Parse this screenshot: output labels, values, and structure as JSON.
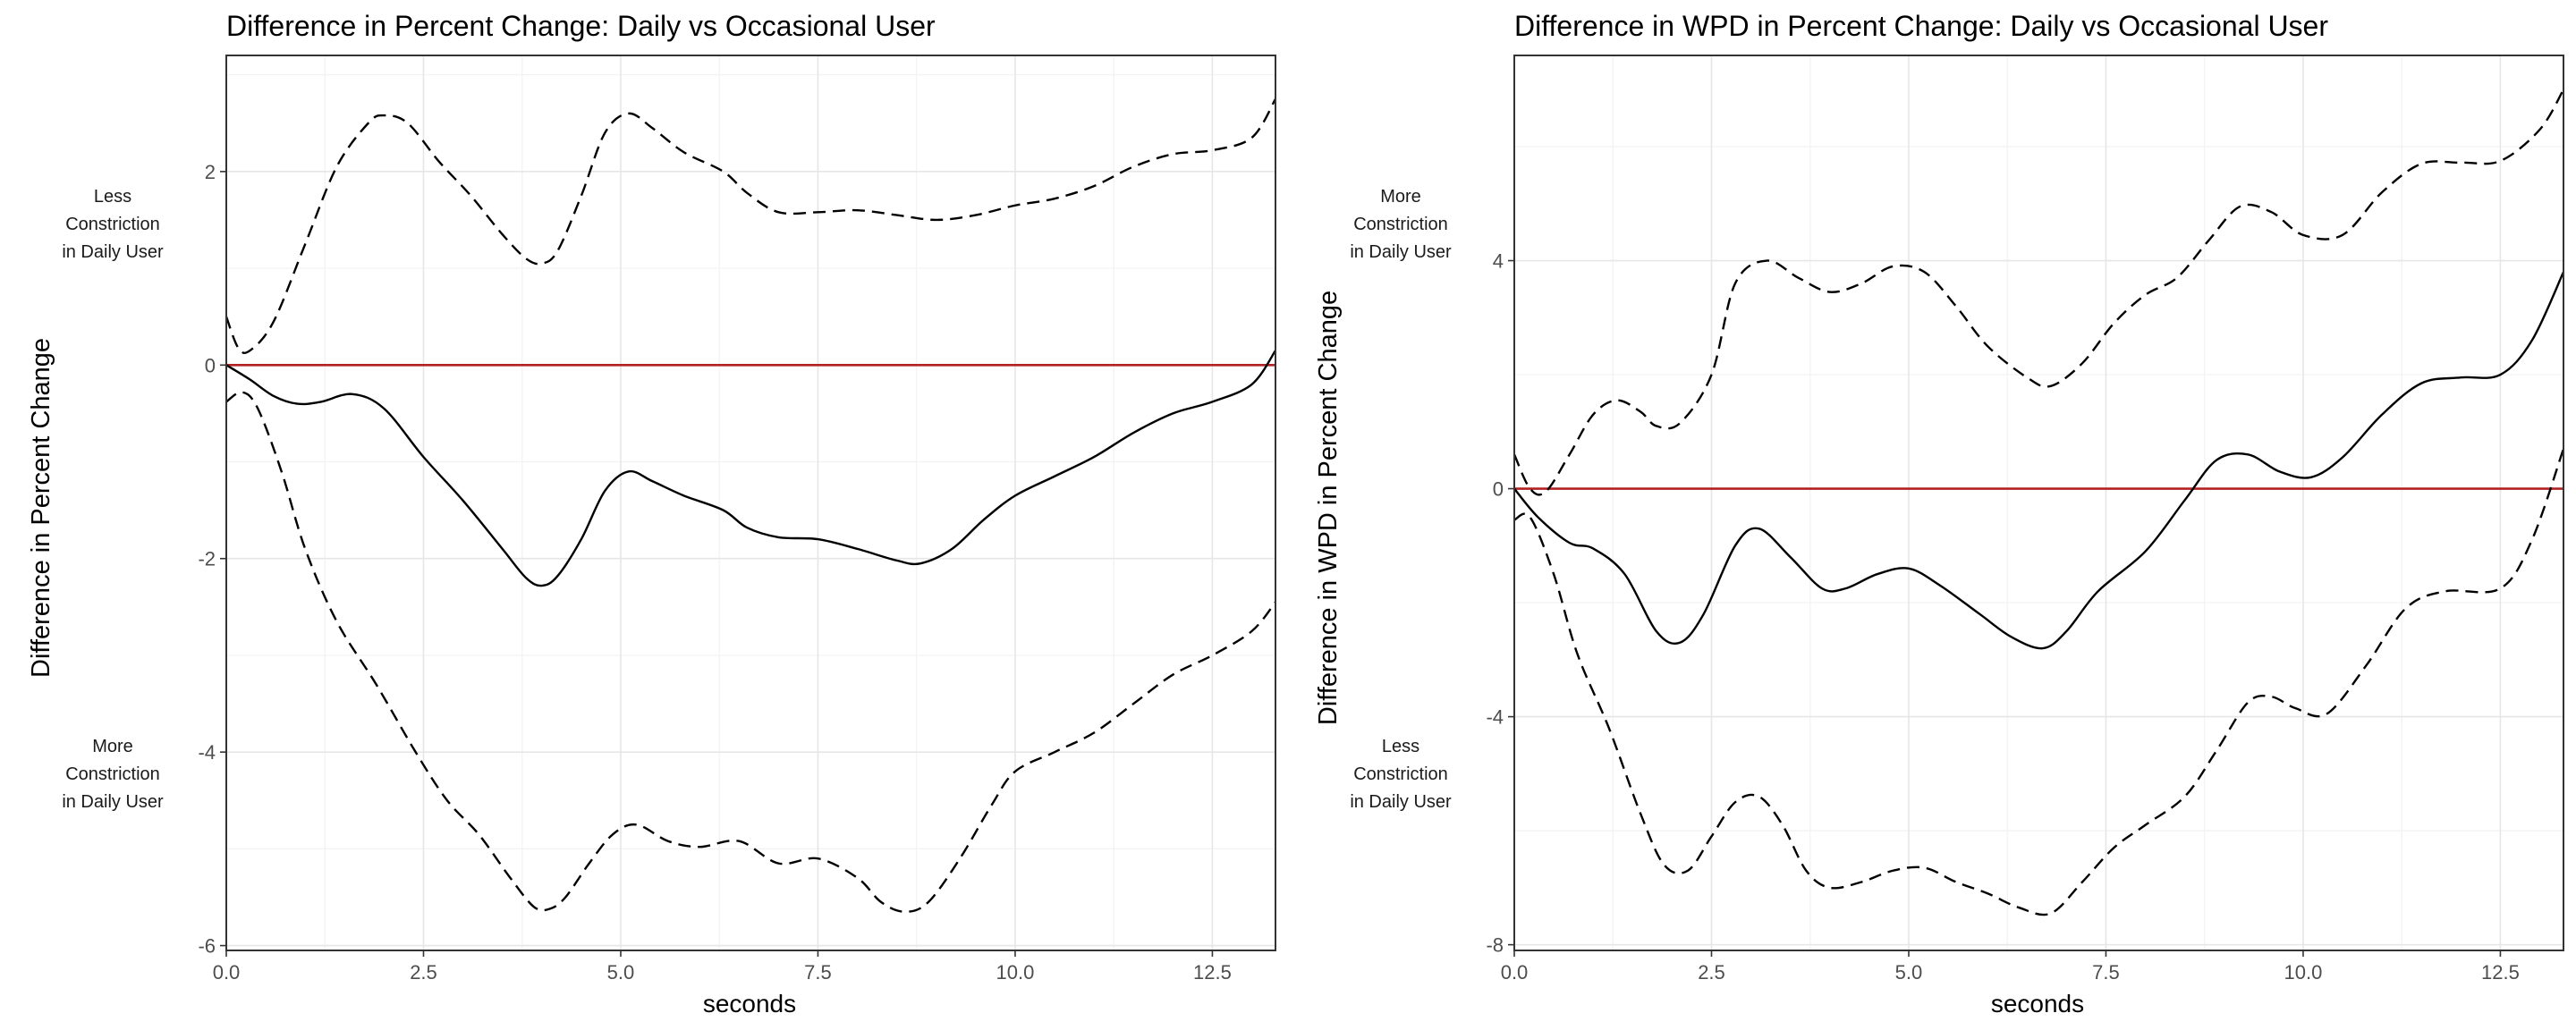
{
  "chart_data": [
    {
      "type": "line",
      "title": "Difference in Percent Change: Daily vs Occasional User",
      "xlabel": "seconds",
      "ylabel": "Difference in Percent Change",
      "xlim": [
        0,
        13.3
      ],
      "ylim": [
        -6.05,
        3.2
      ],
      "x_ticks": [
        0,
        2.5,
        5,
        7.5,
        10,
        12.5
      ],
      "x_tick_labels": [
        "0.0",
        "2.5",
        "5.0",
        "7.5",
        "10.0",
        "12.5"
      ],
      "y_ticks": [
        -6,
        -4,
        -2,
        0,
        2
      ],
      "y_tick_labels": [
        "-6",
        "-4",
        "-2",
        "0",
        "2"
      ],
      "grid": true,
      "reference_line": {
        "y": 0,
        "color": "#b22222"
      },
      "annotations": [
        {
          "lines": [
            "Less",
            "Constriction",
            "in Daily User"
          ],
          "y": 1.45
        },
        {
          "lines": [
            "More",
            "Constriction",
            "in Daily User"
          ],
          "y": -4.2
        }
      ],
      "series": [
        {
          "style": "solid",
          "color": "#000000",
          "x": [
            0,
            0.3,
            0.6,
            0.9,
            1.2,
            1.6,
            2.0,
            2.5,
            3.0,
            3.5,
            3.8,
            4.0,
            4.2,
            4.5,
            4.8,
            5.1,
            5.4,
            5.8,
            6.3,
            6.6,
            7.0,
            7.5,
            8.0,
            8.5,
            8.8,
            9.2,
            9.6,
            10.0,
            10.5,
            11.0,
            11.5,
            12.0,
            12.5,
            13.0,
            13.3
          ],
          "y": [
            0.0,
            -0.15,
            -0.32,
            -0.4,
            -0.38,
            -0.3,
            -0.45,
            -0.95,
            -1.4,
            -1.9,
            -2.2,
            -2.28,
            -2.18,
            -1.8,
            -1.3,
            -1.1,
            -1.2,
            -1.35,
            -1.5,
            -1.68,
            -1.78,
            -1.8,
            -1.9,
            -2.02,
            -2.05,
            -1.9,
            -1.6,
            -1.35,
            -1.15,
            -0.95,
            -0.7,
            -0.5,
            -0.38,
            -0.2,
            0.15
          ]
        },
        {
          "style": "dashed",
          "color": "#000000",
          "x": [
            0,
            0.15,
            0.3,
            0.6,
            1.0,
            1.4,
            1.8,
            2.0,
            2.3,
            2.7,
            3.1,
            3.5,
            3.8,
            4.0,
            4.2,
            4.5,
            4.8,
            5.1,
            5.4,
            5.8,
            6.3,
            6.6,
            7.0,
            7.5,
            8.0,
            8.5,
            9.0,
            9.5,
            10.0,
            10.5,
            11.0,
            11.5,
            12.0,
            12.5,
            13.0,
            13.3
          ],
          "y": [
            0.5,
            0.18,
            0.15,
            0.45,
            1.25,
            2.05,
            2.5,
            2.58,
            2.5,
            2.1,
            1.75,
            1.35,
            1.1,
            1.05,
            1.18,
            1.75,
            2.4,
            2.6,
            2.45,
            2.2,
            2.0,
            1.78,
            1.58,
            1.58,
            1.6,
            1.55,
            1.5,
            1.55,
            1.65,
            1.72,
            1.85,
            2.05,
            2.18,
            2.22,
            2.35,
            2.75
          ]
        },
        {
          "style": "dashed",
          "color": "#000000",
          "x": [
            0,
            0.2,
            0.4,
            0.7,
            1.0,
            1.4,
            1.9,
            2.4,
            2.8,
            3.2,
            3.6,
            3.9,
            4.1,
            4.3,
            4.6,
            4.9,
            5.2,
            5.6,
            6.0,
            6.5,
            7.0,
            7.5,
            8.0,
            8.3,
            8.6,
            8.9,
            9.3,
            9.7,
            10.0,
            10.5,
            11.0,
            11.5,
            12.0,
            12.5,
            13.0,
            13.3
          ],
          "y": [
            -0.38,
            -0.28,
            -0.45,
            -1.1,
            -1.9,
            -2.65,
            -3.3,
            -4.0,
            -4.5,
            -4.85,
            -5.3,
            -5.6,
            -5.62,
            -5.5,
            -5.15,
            -4.85,
            -4.75,
            -4.92,
            -4.98,
            -4.92,
            -5.15,
            -5.1,
            -5.3,
            -5.55,
            -5.65,
            -5.55,
            -5.1,
            -4.55,
            -4.2,
            -4.0,
            -3.8,
            -3.5,
            -3.2,
            -3.0,
            -2.75,
            -2.45
          ]
        }
      ]
    },
    {
      "type": "line",
      "title": "Difference in WPD in Percent Change: Daily vs Occasional User",
      "xlabel": "seconds",
      "ylabel": "Difference in WPD in Percent Change",
      "xlim": [
        0,
        13.3
      ],
      "ylim": [
        -8.1,
        7.6
      ],
      "x_ticks": [
        0,
        2.5,
        5,
        7.5,
        10,
        12.5
      ],
      "x_tick_labels": [
        "0.0",
        "2.5",
        "5.0",
        "7.5",
        "10.0",
        "12.5"
      ],
      "y_ticks": [
        -8,
        -4,
        0,
        4
      ],
      "y_tick_labels": [
        "-8",
        "-4",
        "0",
        "4"
      ],
      "grid": true,
      "reference_line": {
        "y": 0,
        "color": "#b22222"
      },
      "annotations": [
        {
          "lines": [
            "More",
            "Constriction",
            "in Daily User"
          ],
          "y": 4.6
        },
        {
          "lines": [
            "Less",
            "Constriction",
            "in Daily User"
          ],
          "y": -5.0
        }
      ],
      "series": [
        {
          "style": "solid",
          "color": "#000000",
          "x": [
            0,
            0.3,
            0.7,
            1.0,
            1.4,
            1.8,
            2.1,
            2.4,
            2.8,
            3.1,
            3.5,
            3.9,
            4.2,
            4.6,
            5.0,
            5.4,
            5.9,
            6.3,
            6.7,
            7.0,
            7.4,
            8.0,
            8.5,
            8.9,
            9.3,
            9.7,
            10.1,
            10.5,
            11.0,
            11.5,
            12.0,
            12.5,
            12.9,
            13.3
          ],
          "y": [
            0.0,
            -0.5,
            -0.95,
            -1.05,
            -1.5,
            -2.5,
            -2.7,
            -2.2,
            -1.0,
            -0.7,
            -1.2,
            -1.75,
            -1.75,
            -1.5,
            -1.4,
            -1.7,
            -2.2,
            -2.6,
            -2.8,
            -2.5,
            -1.8,
            -1.1,
            -0.2,
            0.5,
            0.6,
            0.3,
            0.2,
            0.55,
            1.3,
            1.85,
            1.95,
            2.0,
            2.6,
            3.8
          ]
        },
        {
          "style": "dashed",
          "color": "#000000",
          "x": [
            0,
            0.2,
            0.4,
            0.7,
            1.0,
            1.3,
            1.6,
            1.8,
            2.1,
            2.5,
            2.8,
            3.2,
            3.6,
            4.0,
            4.4,
            4.8,
            5.2,
            5.6,
            6.0,
            6.5,
            6.8,
            7.2,
            7.6,
            8.0,
            8.4,
            8.8,
            9.2,
            9.6,
            10.0,
            10.5,
            11.0,
            11.5,
            12.0,
            12.5,
            13.0,
            13.3
          ],
          "y": [
            0.6,
            0.0,
            -0.05,
            0.6,
            1.3,
            1.55,
            1.35,
            1.1,
            1.15,
            2.0,
            3.6,
            4.0,
            3.7,
            3.45,
            3.6,
            3.9,
            3.8,
            3.2,
            2.5,
            1.95,
            1.8,
            2.2,
            2.9,
            3.4,
            3.7,
            4.35,
            4.95,
            4.85,
            4.45,
            4.45,
            5.2,
            5.7,
            5.72,
            5.75,
            6.3,
            7.0
          ]
        },
        {
          "style": "dashed",
          "color": "#000000",
          "x": [
            0,
            0.2,
            0.5,
            0.8,
            1.2,
            1.6,
            1.9,
            2.2,
            2.5,
            2.8,
            3.1,
            3.4,
            3.7,
            4.0,
            4.4,
            4.8,
            5.2,
            5.6,
            6.0,
            6.4,
            6.8,
            7.2,
            7.6,
            8.0,
            8.5,
            8.9,
            9.3,
            9.6,
            9.9,
            10.3,
            10.8,
            11.3,
            11.8,
            12.5,
            12.9,
            13.3
          ],
          "y": [
            -0.55,
            -0.5,
            -1.5,
            -2.9,
            -4.2,
            -5.7,
            -6.6,
            -6.7,
            -6.1,
            -5.5,
            -5.4,
            -5.9,
            -6.7,
            -7.0,
            -6.9,
            -6.7,
            -6.65,
            -6.9,
            -7.1,
            -7.35,
            -7.45,
            -6.9,
            -6.3,
            -5.9,
            -5.4,
            -4.6,
            -3.75,
            -3.65,
            -3.85,
            -3.95,
            -3.1,
            -2.1,
            -1.8,
            -1.75,
            -0.9,
            0.7
          ]
        }
      ]
    }
  ]
}
